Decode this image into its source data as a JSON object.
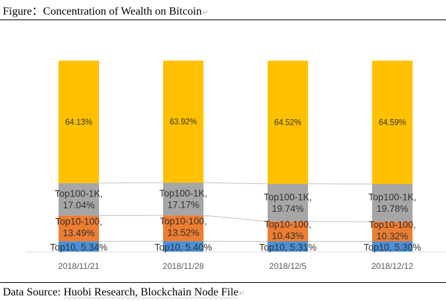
{
  "caption": {
    "figure_prefix": "Figure：",
    "figure_title": "Concentration of Wealth on Bitcoin",
    "source_prefix": "Data Source: ",
    "source_text": "Huobi Research, Blockchain Node File",
    "return_glyph": "↵"
  },
  "colors": {
    "top10": "#4a90d9",
    "top10_100": "#ed7d31",
    "top100_1k": "#a6a6a6",
    "rest": "#ffc000",
    "connector": "#bfbfbf",
    "axis": "#d9d9d9",
    "text": "#333333"
  },
  "chart_data": {
    "type": "bar",
    "stacked": true,
    "categories": [
      "2018/11/21",
      "2018/11/28",
      "2018/12/5",
      "2018/12/12"
    ],
    "series": [
      {
        "name": "Top10",
        "values": [
          5.34,
          5.4,
          5.31,
          5.3
        ],
        "labels": [
          "Top10, 5.34%",
          "Top10, 5.40%",
          "Top10, 5.31%",
          "Top10, 5.30%"
        ]
      },
      {
        "name": "Top10-100",
        "values": [
          13.49,
          13.52,
          10.43,
          10.32
        ],
        "labels": [
          [
            "Top10-100,",
            "13.49%"
          ],
          [
            "Top10-100,",
            "13.52%"
          ],
          [
            "Top10-100,",
            "10.43%"
          ],
          [
            "Top10-100,",
            "10.32%"
          ]
        ]
      },
      {
        "name": "Top100-1K",
        "values": [
          17.04,
          17.17,
          19.74,
          19.78
        ],
        "labels": [
          [
            "Top100-1K,",
            "17.04%"
          ],
          [
            "Top100-1K,",
            "17.17%"
          ],
          [
            "Top100-1K,",
            "19.74%"
          ],
          [
            "Top100-1K,",
            "19.78%"
          ]
        ]
      },
      {
        "values": [
          64.13,
          63.92,
          64.52,
          64.59
        ],
        "labels": [
          "64.13%",
          "63.92%",
          "64.52%",
          "64.59%"
        ]
      }
    ],
    "ylim": [
      0,
      100
    ],
    "series_lines": true,
    "grid": false
  }
}
